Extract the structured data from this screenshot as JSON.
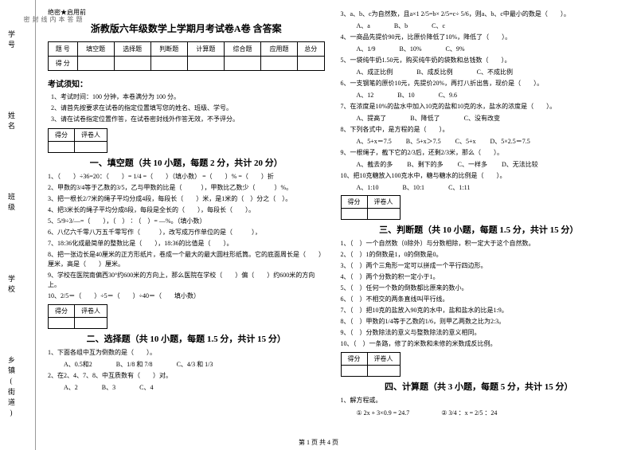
{
  "margin": {
    "labels": [
      "学号",
      "姓名",
      "班级",
      "学校",
      "乡镇(街道)"
    ],
    "dashMarkers": [
      "题",
      "答",
      "本",
      "内",
      "线",
      "封",
      "密"
    ]
  },
  "secret": "绝密★启用前",
  "title": "浙教版六年级数学上学期月考试卷A卷 含答案",
  "scoreTable": {
    "row1": [
      "题 号",
      "填空题",
      "选择题",
      "判断题",
      "计算题",
      "综合题",
      "应用题",
      "总分"
    ],
    "row2": [
      "得 分",
      "",
      "",
      "",
      "",
      "",
      "",
      ""
    ]
  },
  "noticeHeader": "考试须知：",
  "notices": [
    "1、考试时间：100 分钟，本卷满分为 100 分。",
    "2、请首先按要求在试卷的指定位置填写您的姓名、班级、学号。",
    "3、请在试卷指定位置作答，在试卷密封线外作答无效，不予评分。"
  ],
  "secHeader": {
    "c1": "得分",
    "c2": "评卷人"
  },
  "sec1": {
    "title": "一、填空题（共 10 小题，每题 2 分，共计 20 分）",
    "items": [
      "1、（　　）÷36=20：（　　）= 1/4 =（　　）（填小数） =（　　）% =（　　）折",
      "2、甲数的3/4等于乙数的3/5，乙与甲数的比是（　　　），甲数比乙数少（　　　）%。",
      "3、把一根长2/7米的绳子平均分成4段，每段长（　　）米，是1米的（　）分之（　）。",
      "4、把3米长的绳子平均分成8段，每段是全长的（　　），每段长（　　）。",
      "5、5/9÷3/—=（　　），（　）∶（　）= —%。（填小数）",
      "6、八亿六千零八万五千零写作（　　　），改写成万作单位的是（　　　），",
      "7、18:36化成最简单的整数比是（　　），18:36的比值是（　　）。",
      "8、把一张边长是40厘米的正方形纸片，卷成一个最大的最大圆柱形纸筒。它的底面周长是（　　）厘米，高是（　　）厘米。",
      "9、学校在医院南偏西30°约600米的方向上，那么医院在学校（　　）偏（　　）约600米的方向上。",
      "10、2/5＝（　　）÷5＝（　　）÷40＝（　　填小数）"
    ]
  },
  "sec2": {
    "title": "二、选择题（共 10 小题，每题 1.5 分，共计 15 分）",
    "q1": "1、下面各组中互为倒数的是（　　）。",
    "q1opts": [
      "A、0.5和2",
      "B、1/8 和 7/8",
      "C、4/3 和 1/3"
    ],
    "q2": "2、在2、4、7、8、中互质数有（　　）对。",
    "q2opts": [
      "A、2",
      "B、3",
      "C、4"
    ],
    "q3top": "3、a、b、c为自然数，且a×1 2/5=b× 2/5=c÷ 5/6，则a、b、c中最小的数是（　　）。",
    "q3opts": [
      "A、a",
      "B、b",
      "C、c"
    ],
    "q4": "4、一商品先提价90元，比原价降低了10%，降低了（　　）。",
    "q4opts": [
      "A、1/9",
      "B、10%",
      "C、9%"
    ],
    "q5": "5、一袋纯牛奶1.50元，购买纯牛奶的袋数和总钱数（　　）。",
    "q5opts": [
      "A、成正比例",
      "B、成反比例",
      "C、不成比例"
    ],
    "q6": "6、一支钢笔的原价10元，先提价20%，再打八折出售，现价是（　　）。",
    "q6opts": [
      "A、12",
      "B、10",
      "C、9.6"
    ],
    "q7": "7、在浓度是10%的盐水中加入10克的盐和10克的水，盐水的浓度是（　　）。",
    "q7opts": [
      "A、提高了",
      "B、降低了",
      "C、没有改变"
    ],
    "q8": "8、下列各式中，是方程的是（　　）。",
    "q8opts": [
      "A、5+x＝7.5",
      "B、5+x＞7.5",
      "C、5+x",
      "D、5×2.5＝7.5"
    ],
    "q9": "9、一根绳子，截下它的2/3后，还剩2/3米，那么（　　）。",
    "q9opts": [
      "A、截去的多",
      "B、剩下的多",
      "C、一样多",
      "D、无法比较"
    ],
    "q10": "10、把10克糖放入100克水中，糖与糖水的比例是（　　）。",
    "q10opts": [
      "A、1:10",
      "B、10:1",
      "C、1:11"
    ]
  },
  "sec3": {
    "title": "三、判断题（共 10 小题，每题 1.5 分，共计 15 分）",
    "items": [
      "1、（　）一个自然数（0除外）与分数相除，积一定大于这个自然数。",
      "2、（　）1的倒数是1，0的倒数是0。",
      "3、（　）两个三角形一定可以拼成一个平行四边形。",
      "4、（　）两个分数的积一定小于1。",
      "5、（　）任何一个数的倒数都比原来的数小。",
      "6、（　）不相交的两条直线叫平行线。",
      "7、（　）把10克的盐放入90克的水中，盐和盐水的比是1:9。",
      "8、（　）甲数的1/4等于乙数的1/6，则甲乙两数之比为2:3。",
      "9、（　）分数除法的意义与整数除法的意义相同。",
      "10、（　）一条路，修了的米数和未修的米数成反比例。"
    ]
  },
  "sec4": {
    "title": "四、计算题（共 3 小题，每题 5 分，共计 15 分）",
    "q1": "1、解方程或。",
    "calc1": "① 2x + 3×0.9 = 24.7",
    "calc2": "② 3/4 ：x = 2/5 ：24"
  },
  "footer": "第 1 页 共 4 页"
}
